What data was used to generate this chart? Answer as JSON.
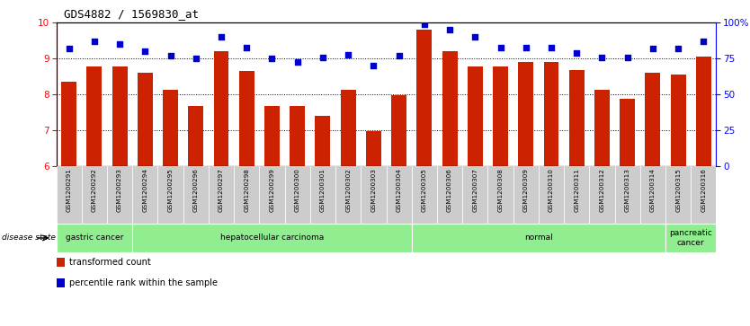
{
  "title": "GDS4882 / 1569830_at",
  "samples": [
    "GSM1200291",
    "GSM1200292",
    "GSM1200293",
    "GSM1200294",
    "GSM1200295",
    "GSM1200296",
    "GSM1200297",
    "GSM1200298",
    "GSM1200299",
    "GSM1200300",
    "GSM1200301",
    "GSM1200302",
    "GSM1200303",
    "GSM1200304",
    "GSM1200305",
    "GSM1200306",
    "GSM1200307",
    "GSM1200308",
    "GSM1200309",
    "GSM1200310",
    "GSM1200311",
    "GSM1200312",
    "GSM1200313",
    "GSM1200314",
    "GSM1200315",
    "GSM1200316"
  ],
  "bar_values": [
    8.35,
    8.78,
    8.78,
    8.62,
    8.12,
    7.68,
    9.22,
    8.65,
    7.68,
    7.68,
    7.4,
    8.12,
    6.98,
    7.98,
    9.82,
    9.22,
    8.78,
    8.78,
    8.9,
    8.9,
    8.68,
    8.12,
    7.88,
    8.62,
    8.55,
    9.05
  ],
  "dot_values_pct": [
    82,
    87,
    85,
    80,
    77,
    75,
    90,
    83,
    75,
    73,
    76,
    78,
    70,
    77,
    99,
    95,
    90,
    83,
    83,
    83,
    79,
    76,
    76,
    82,
    82,
    87
  ],
  "groups": [
    {
      "label": "gastric cancer",
      "start": 0,
      "end": 3
    },
    {
      "label": "hepatocellular carcinoma",
      "start": 3,
      "end": 14
    },
    {
      "label": "normal",
      "start": 14,
      "end": 24
    },
    {
      "label": "pancreatic\ncancer",
      "start": 24,
      "end": 26
    }
  ],
  "bar_color": "#cc2200",
  "dot_color": "#0000cc",
  "ylim_left": [
    6,
    10
  ],
  "ylim_right": [
    0,
    100
  ],
  "yticks_left": [
    6,
    7,
    8,
    9,
    10
  ],
  "yticks_right": [
    0,
    25,
    50,
    75,
    100
  ],
  "bg_color": "#ffffff",
  "disease_state_label": "disease state",
  "legend_items": [
    {
      "color": "#cc2200",
      "label": "transformed count"
    },
    {
      "color": "#0000cc",
      "label": "percentile rank within the sample"
    }
  ],
  "group_bg_color": "#90ee90",
  "xticklabel_bg": "#cccccc"
}
